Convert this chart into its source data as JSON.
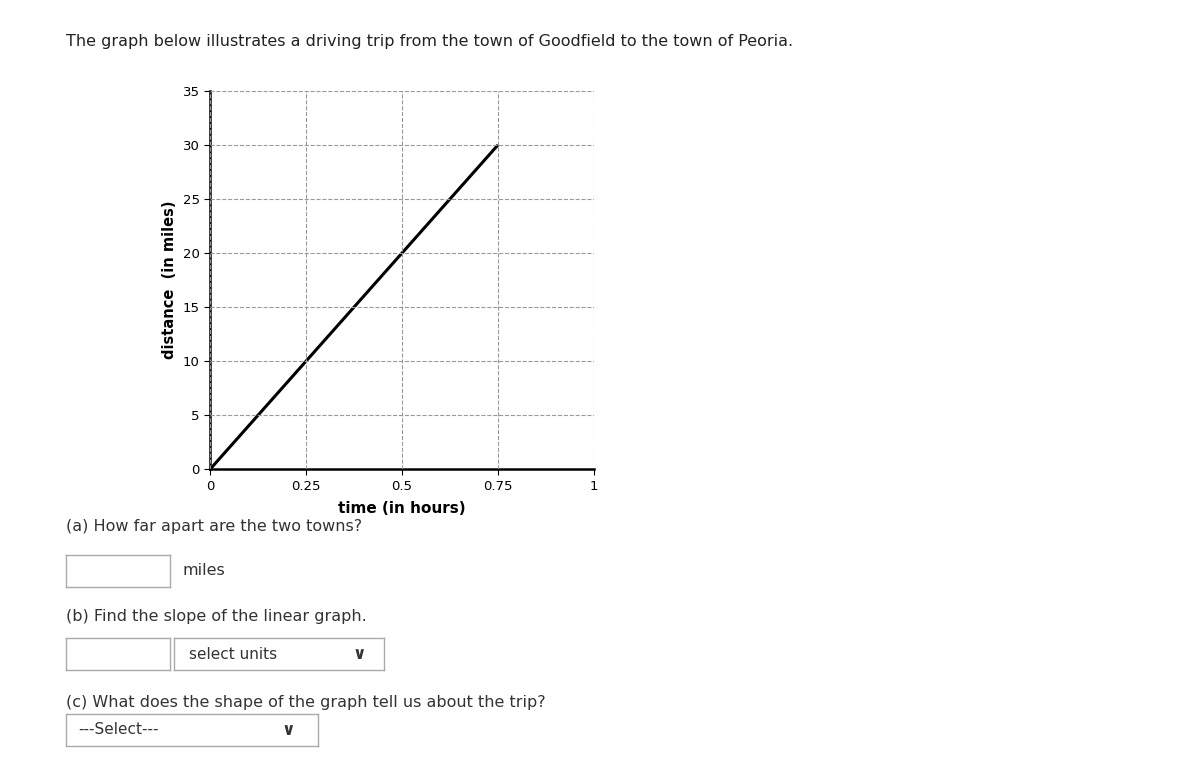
{
  "title": "The graph below illustrates a driving trip from the town of Goodfield to the town of Peoria.",
  "title_fontsize": 11.5,
  "title_color": "#222222",
  "xlabel": "time (in hours)",
  "ylabel": "distance  (in miles)",
  "xlabel_fontsize": 11,
  "ylabel_fontsize": 10.5,
  "xlim": [
    0,
    1
  ],
  "ylim": [
    0,
    35
  ],
  "xticks": [
    0,
    0.25,
    0.5,
    0.75,
    1
  ],
  "xtick_labels": [
    "0",
    "0.25",
    "0.5",
    "0.75",
    "1"
  ],
  "yticks": [
    0,
    5,
    10,
    15,
    20,
    25,
    30,
    35
  ],
  "line_x": [
    0,
    0.75
  ],
  "line_y": [
    0,
    30
  ],
  "line_color": "#000000",
  "line_width": 2.2,
  "grid_color": "#999999",
  "grid_style": "--",
  "grid_alpha": 1.0,
  "grid_linewidth": 0.8,
  "background_color": "#ffffff",
  "spine_color": "#000000",
  "spine_linewidth": 1.8,
  "tick_fontsize": 9.5,
  "qa_text_a": "(a) How far apart are the two towns?",
  "qa_text_b": "(b) Find the slope of the linear graph.",
  "qa_text_c": "(c) What does the shape of the graph tell us about the trip?",
  "qa_fontsize": 11.5,
  "qa_color": "#333333",
  "miles_label": "miles",
  "select_units_label": "select units",
  "select_c_label": "---Select---",
  "chevron": "∨"
}
